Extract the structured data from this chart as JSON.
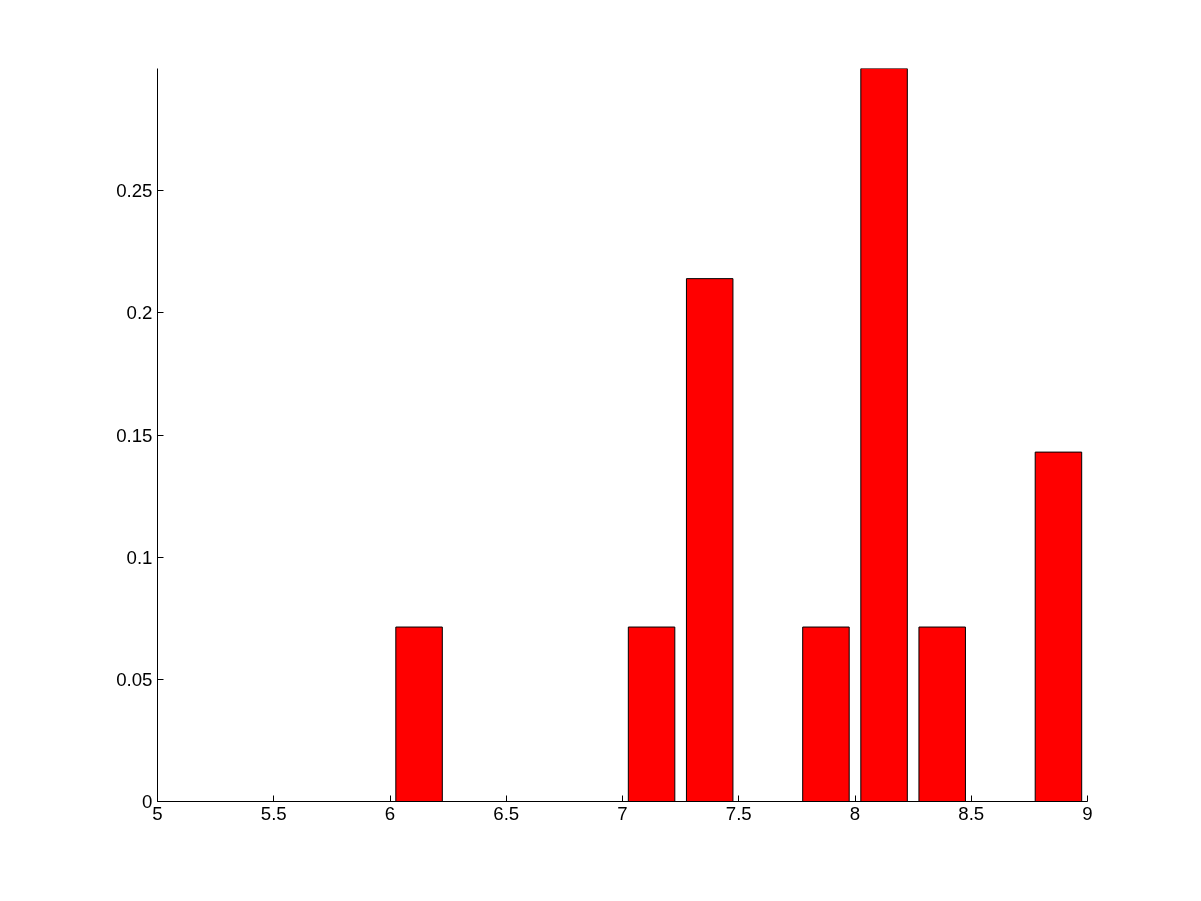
{
  "chart_data": {
    "type": "bar",
    "x": [
      6.125,
      7.125,
      7.375,
      7.875,
      8.125,
      8.375,
      8.875
    ],
    "values": [
      0.0714,
      0.0714,
      0.214,
      0.0714,
      0.3,
      0.0714,
      0.143
    ],
    "color": "#ff0000",
    "xlim": [
      5,
      9
    ],
    "xticks": [
      5,
      5.5,
      6,
      6.5,
      7,
      7.5,
      8,
      8.5,
      9
    ],
    "ylim": [
      0,
      0.3
    ],
    "yticks": [
      0,
      0.05,
      0.1,
      0.15,
      0.2,
      0.25
    ],
    "grid": false
  }
}
